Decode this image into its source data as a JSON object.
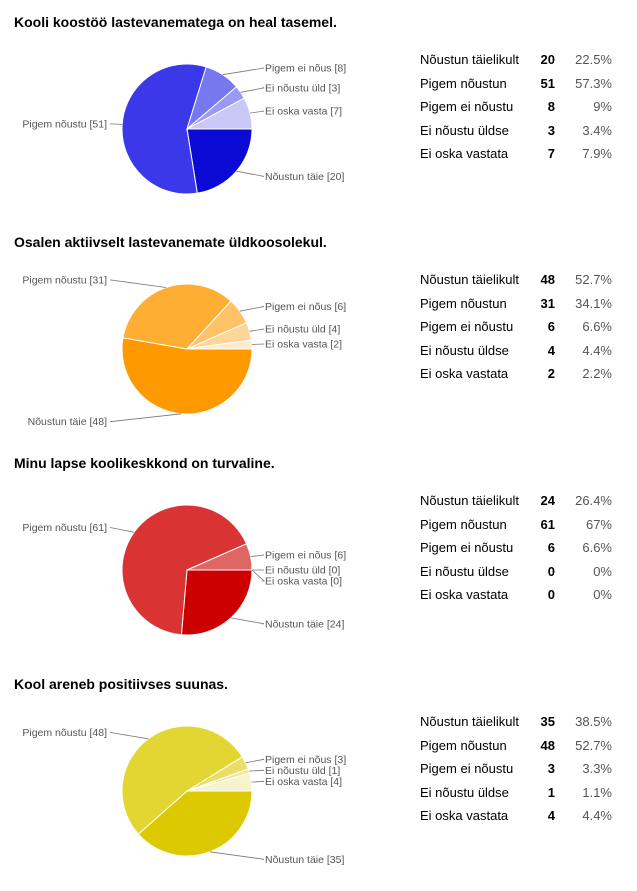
{
  "chart_data": [
    {
      "type": "pie",
      "title": "Kooli koostöö lastevanematega on heal tasemel.",
      "slices": [
        {
          "table_label": "Nõustun täielikult",
          "pie_label": "Nõustun täie",
          "count": 20,
          "percent": "22.5%",
          "color": "#0a0ad4"
        },
        {
          "table_label": "Pigem nõustun",
          "pie_label": "Pigem nõustu",
          "count": 51,
          "percent": "57.3%",
          "color": "#3a38e8"
        },
        {
          "table_label": "Pigem ei nõustu",
          "pie_label": "Pigem ei nõus",
          "count": 8,
          "percent": "9%",
          "color": "#7777ee"
        },
        {
          "table_label": "Ei nõustu üldse",
          "pie_label": "Ei nõustu üld",
          "count": 3,
          "percent": "3.4%",
          "color": "#9a9af2"
        },
        {
          "table_label": "Ei oska vastata",
          "pie_label": "Ei oska vasta",
          "count": 7,
          "percent": "7.9%",
          "color": "#c9c9f8"
        }
      ]
    },
    {
      "type": "pie",
      "title": "Osalen aktiivselt lastevanemate üldkoosolekul.",
      "slices": [
        {
          "table_label": "Nõustun täielikult",
          "pie_label": "Nõustun täie",
          "count": 48,
          "percent": "52.7%",
          "color": "#ff9900"
        },
        {
          "table_label": "Pigem nõustun",
          "pie_label": "Pigem nõustu",
          "count": 31,
          "percent": "34.1%",
          "color": "#ffad33"
        },
        {
          "table_label": "Pigem ei nõustu",
          "pie_label": "Pigem ei nõus",
          "count": 6,
          "percent": "6.6%",
          "color": "#ffc266"
        },
        {
          "table_label": "Ei nõustu üldse",
          "pie_label": "Ei nõustu üld",
          "count": 4,
          "percent": "4.4%",
          "color": "#ffd699"
        },
        {
          "table_label": "Ei oska vastata",
          "pie_label": "Ei oska vasta",
          "count": 2,
          "percent": "2.2%",
          "color": "#ffebcc"
        }
      ]
    },
    {
      "type": "pie",
      "title": "Minu lapse koolikeskkond on turvaline.",
      "slices": [
        {
          "table_label": "Nõustun täielikult",
          "pie_label": "Nõustun täie",
          "count": 24,
          "percent": "26.4%",
          "color": "#cc0000"
        },
        {
          "table_label": "Pigem nõustun",
          "pie_label": "Pigem nõustu",
          "count": 61,
          "percent": "67%",
          "color": "#d93333"
        },
        {
          "table_label": "Pigem ei nõustu",
          "pie_label": "Pigem ei nõus",
          "count": 6,
          "percent": "6.6%",
          "color": "#e06666"
        },
        {
          "table_label": "Ei nõustu üldse",
          "pie_label": "Ei nõustu üld",
          "count": 0,
          "percent": "0%",
          "color": "#ea9999"
        },
        {
          "table_label": "Ei oska vastata",
          "pie_label": "Ei oska vasta",
          "count": 0,
          "percent": "0%",
          "color": "#f4cccc"
        }
      ]
    },
    {
      "type": "pie",
      "title": "Kool areneb positiivses suunas.",
      "slices": [
        {
          "table_label": "Nõustun täielikult",
          "pie_label": "Nõustun täie",
          "count": 35,
          "percent": "38.5%",
          "color": "#dcc900"
        },
        {
          "table_label": "Pigem nõustun",
          "pie_label": "Pigem nõustu",
          "count": 48,
          "percent": "52.7%",
          "color": "#e3d633"
        },
        {
          "table_label": "Pigem ei nõustu",
          "pie_label": "Pigem ei nõus",
          "count": 3,
          "percent": "3.3%",
          "color": "#eade66"
        },
        {
          "table_label": "Ei nõustu üldse",
          "pie_label": "Ei nõustu üld",
          "count": 1,
          "percent": "1.1%",
          "color": "#f0e799"
        },
        {
          "table_label": "Ei oska vastata",
          "pie_label": "Ei oska vasta",
          "count": 4,
          "percent": "4.4%",
          "color": "#f7f3cc"
        }
      ]
    }
  ]
}
